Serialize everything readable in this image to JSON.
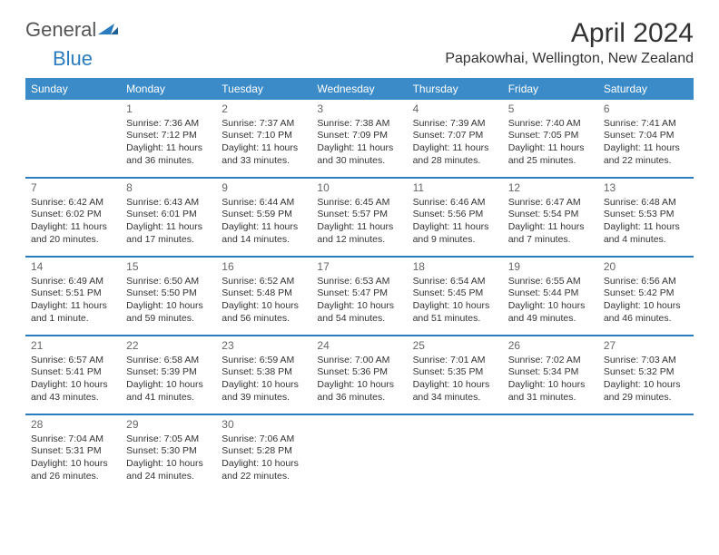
{
  "branding": {
    "logo_text1": "General",
    "logo_text2": "Blue",
    "logo_fill": "#2b7bbf"
  },
  "header": {
    "title": "April 2024",
    "location": "Papakowhai, Wellington, New Zealand"
  },
  "colors": {
    "header_bg": "#3b8bc9",
    "header_text": "#ffffff",
    "row_separator": "#2b7bbf",
    "page_bg": "#ffffff",
    "text": "#333333"
  },
  "days_of_week": [
    "Sunday",
    "Monday",
    "Tuesday",
    "Wednesday",
    "Thursday",
    "Friday",
    "Saturday"
  ],
  "calendar": {
    "start_day_index": 1,
    "cells": [
      {
        "day": "1",
        "sunrise": "Sunrise: 7:36 AM",
        "sunset": "Sunset: 7:12 PM",
        "daylight1": "Daylight: 11 hours",
        "daylight2": "and 36 minutes."
      },
      {
        "day": "2",
        "sunrise": "Sunrise: 7:37 AM",
        "sunset": "Sunset: 7:10 PM",
        "daylight1": "Daylight: 11 hours",
        "daylight2": "and 33 minutes."
      },
      {
        "day": "3",
        "sunrise": "Sunrise: 7:38 AM",
        "sunset": "Sunset: 7:09 PM",
        "daylight1": "Daylight: 11 hours",
        "daylight2": "and 30 minutes."
      },
      {
        "day": "4",
        "sunrise": "Sunrise: 7:39 AM",
        "sunset": "Sunset: 7:07 PM",
        "daylight1": "Daylight: 11 hours",
        "daylight2": "and 28 minutes."
      },
      {
        "day": "5",
        "sunrise": "Sunrise: 7:40 AM",
        "sunset": "Sunset: 7:05 PM",
        "daylight1": "Daylight: 11 hours",
        "daylight2": "and 25 minutes."
      },
      {
        "day": "6",
        "sunrise": "Sunrise: 7:41 AM",
        "sunset": "Sunset: 7:04 PM",
        "daylight1": "Daylight: 11 hours",
        "daylight2": "and 22 minutes."
      },
      {
        "day": "7",
        "sunrise": "Sunrise: 6:42 AM",
        "sunset": "Sunset: 6:02 PM",
        "daylight1": "Daylight: 11 hours",
        "daylight2": "and 20 minutes."
      },
      {
        "day": "8",
        "sunrise": "Sunrise: 6:43 AM",
        "sunset": "Sunset: 6:01 PM",
        "daylight1": "Daylight: 11 hours",
        "daylight2": "and 17 minutes."
      },
      {
        "day": "9",
        "sunrise": "Sunrise: 6:44 AM",
        "sunset": "Sunset: 5:59 PM",
        "daylight1": "Daylight: 11 hours",
        "daylight2": "and 14 minutes."
      },
      {
        "day": "10",
        "sunrise": "Sunrise: 6:45 AM",
        "sunset": "Sunset: 5:57 PM",
        "daylight1": "Daylight: 11 hours",
        "daylight2": "and 12 minutes."
      },
      {
        "day": "11",
        "sunrise": "Sunrise: 6:46 AM",
        "sunset": "Sunset: 5:56 PM",
        "daylight1": "Daylight: 11 hours",
        "daylight2": "and 9 minutes."
      },
      {
        "day": "12",
        "sunrise": "Sunrise: 6:47 AM",
        "sunset": "Sunset: 5:54 PM",
        "daylight1": "Daylight: 11 hours",
        "daylight2": "and 7 minutes."
      },
      {
        "day": "13",
        "sunrise": "Sunrise: 6:48 AM",
        "sunset": "Sunset: 5:53 PM",
        "daylight1": "Daylight: 11 hours",
        "daylight2": "and 4 minutes."
      },
      {
        "day": "14",
        "sunrise": "Sunrise: 6:49 AM",
        "sunset": "Sunset: 5:51 PM",
        "daylight1": "Daylight: 11 hours",
        "daylight2": "and 1 minute."
      },
      {
        "day": "15",
        "sunrise": "Sunrise: 6:50 AM",
        "sunset": "Sunset: 5:50 PM",
        "daylight1": "Daylight: 10 hours",
        "daylight2": "and 59 minutes."
      },
      {
        "day": "16",
        "sunrise": "Sunrise: 6:52 AM",
        "sunset": "Sunset: 5:48 PM",
        "daylight1": "Daylight: 10 hours",
        "daylight2": "and 56 minutes."
      },
      {
        "day": "17",
        "sunrise": "Sunrise: 6:53 AM",
        "sunset": "Sunset: 5:47 PM",
        "daylight1": "Daylight: 10 hours",
        "daylight2": "and 54 minutes."
      },
      {
        "day": "18",
        "sunrise": "Sunrise: 6:54 AM",
        "sunset": "Sunset: 5:45 PM",
        "daylight1": "Daylight: 10 hours",
        "daylight2": "and 51 minutes."
      },
      {
        "day": "19",
        "sunrise": "Sunrise: 6:55 AM",
        "sunset": "Sunset: 5:44 PM",
        "daylight1": "Daylight: 10 hours",
        "daylight2": "and 49 minutes."
      },
      {
        "day": "20",
        "sunrise": "Sunrise: 6:56 AM",
        "sunset": "Sunset: 5:42 PM",
        "daylight1": "Daylight: 10 hours",
        "daylight2": "and 46 minutes."
      },
      {
        "day": "21",
        "sunrise": "Sunrise: 6:57 AM",
        "sunset": "Sunset: 5:41 PM",
        "daylight1": "Daylight: 10 hours",
        "daylight2": "and 43 minutes."
      },
      {
        "day": "22",
        "sunrise": "Sunrise: 6:58 AM",
        "sunset": "Sunset: 5:39 PM",
        "daylight1": "Daylight: 10 hours",
        "daylight2": "and 41 minutes."
      },
      {
        "day": "23",
        "sunrise": "Sunrise: 6:59 AM",
        "sunset": "Sunset: 5:38 PM",
        "daylight1": "Daylight: 10 hours",
        "daylight2": "and 39 minutes."
      },
      {
        "day": "24",
        "sunrise": "Sunrise: 7:00 AM",
        "sunset": "Sunset: 5:36 PM",
        "daylight1": "Daylight: 10 hours",
        "daylight2": "and 36 minutes."
      },
      {
        "day": "25",
        "sunrise": "Sunrise: 7:01 AM",
        "sunset": "Sunset: 5:35 PM",
        "daylight1": "Daylight: 10 hours",
        "daylight2": "and 34 minutes."
      },
      {
        "day": "26",
        "sunrise": "Sunrise: 7:02 AM",
        "sunset": "Sunset: 5:34 PM",
        "daylight1": "Daylight: 10 hours",
        "daylight2": "and 31 minutes."
      },
      {
        "day": "27",
        "sunrise": "Sunrise: 7:03 AM",
        "sunset": "Sunset: 5:32 PM",
        "daylight1": "Daylight: 10 hours",
        "daylight2": "and 29 minutes."
      },
      {
        "day": "28",
        "sunrise": "Sunrise: 7:04 AM",
        "sunset": "Sunset: 5:31 PM",
        "daylight1": "Daylight: 10 hours",
        "daylight2": "and 26 minutes."
      },
      {
        "day": "29",
        "sunrise": "Sunrise: 7:05 AM",
        "sunset": "Sunset: 5:30 PM",
        "daylight1": "Daylight: 10 hours",
        "daylight2": "and 24 minutes."
      },
      {
        "day": "30",
        "sunrise": "Sunrise: 7:06 AM",
        "sunset": "Sunset: 5:28 PM",
        "daylight1": "Daylight: 10 hours",
        "daylight2": "and 22 minutes."
      }
    ]
  }
}
